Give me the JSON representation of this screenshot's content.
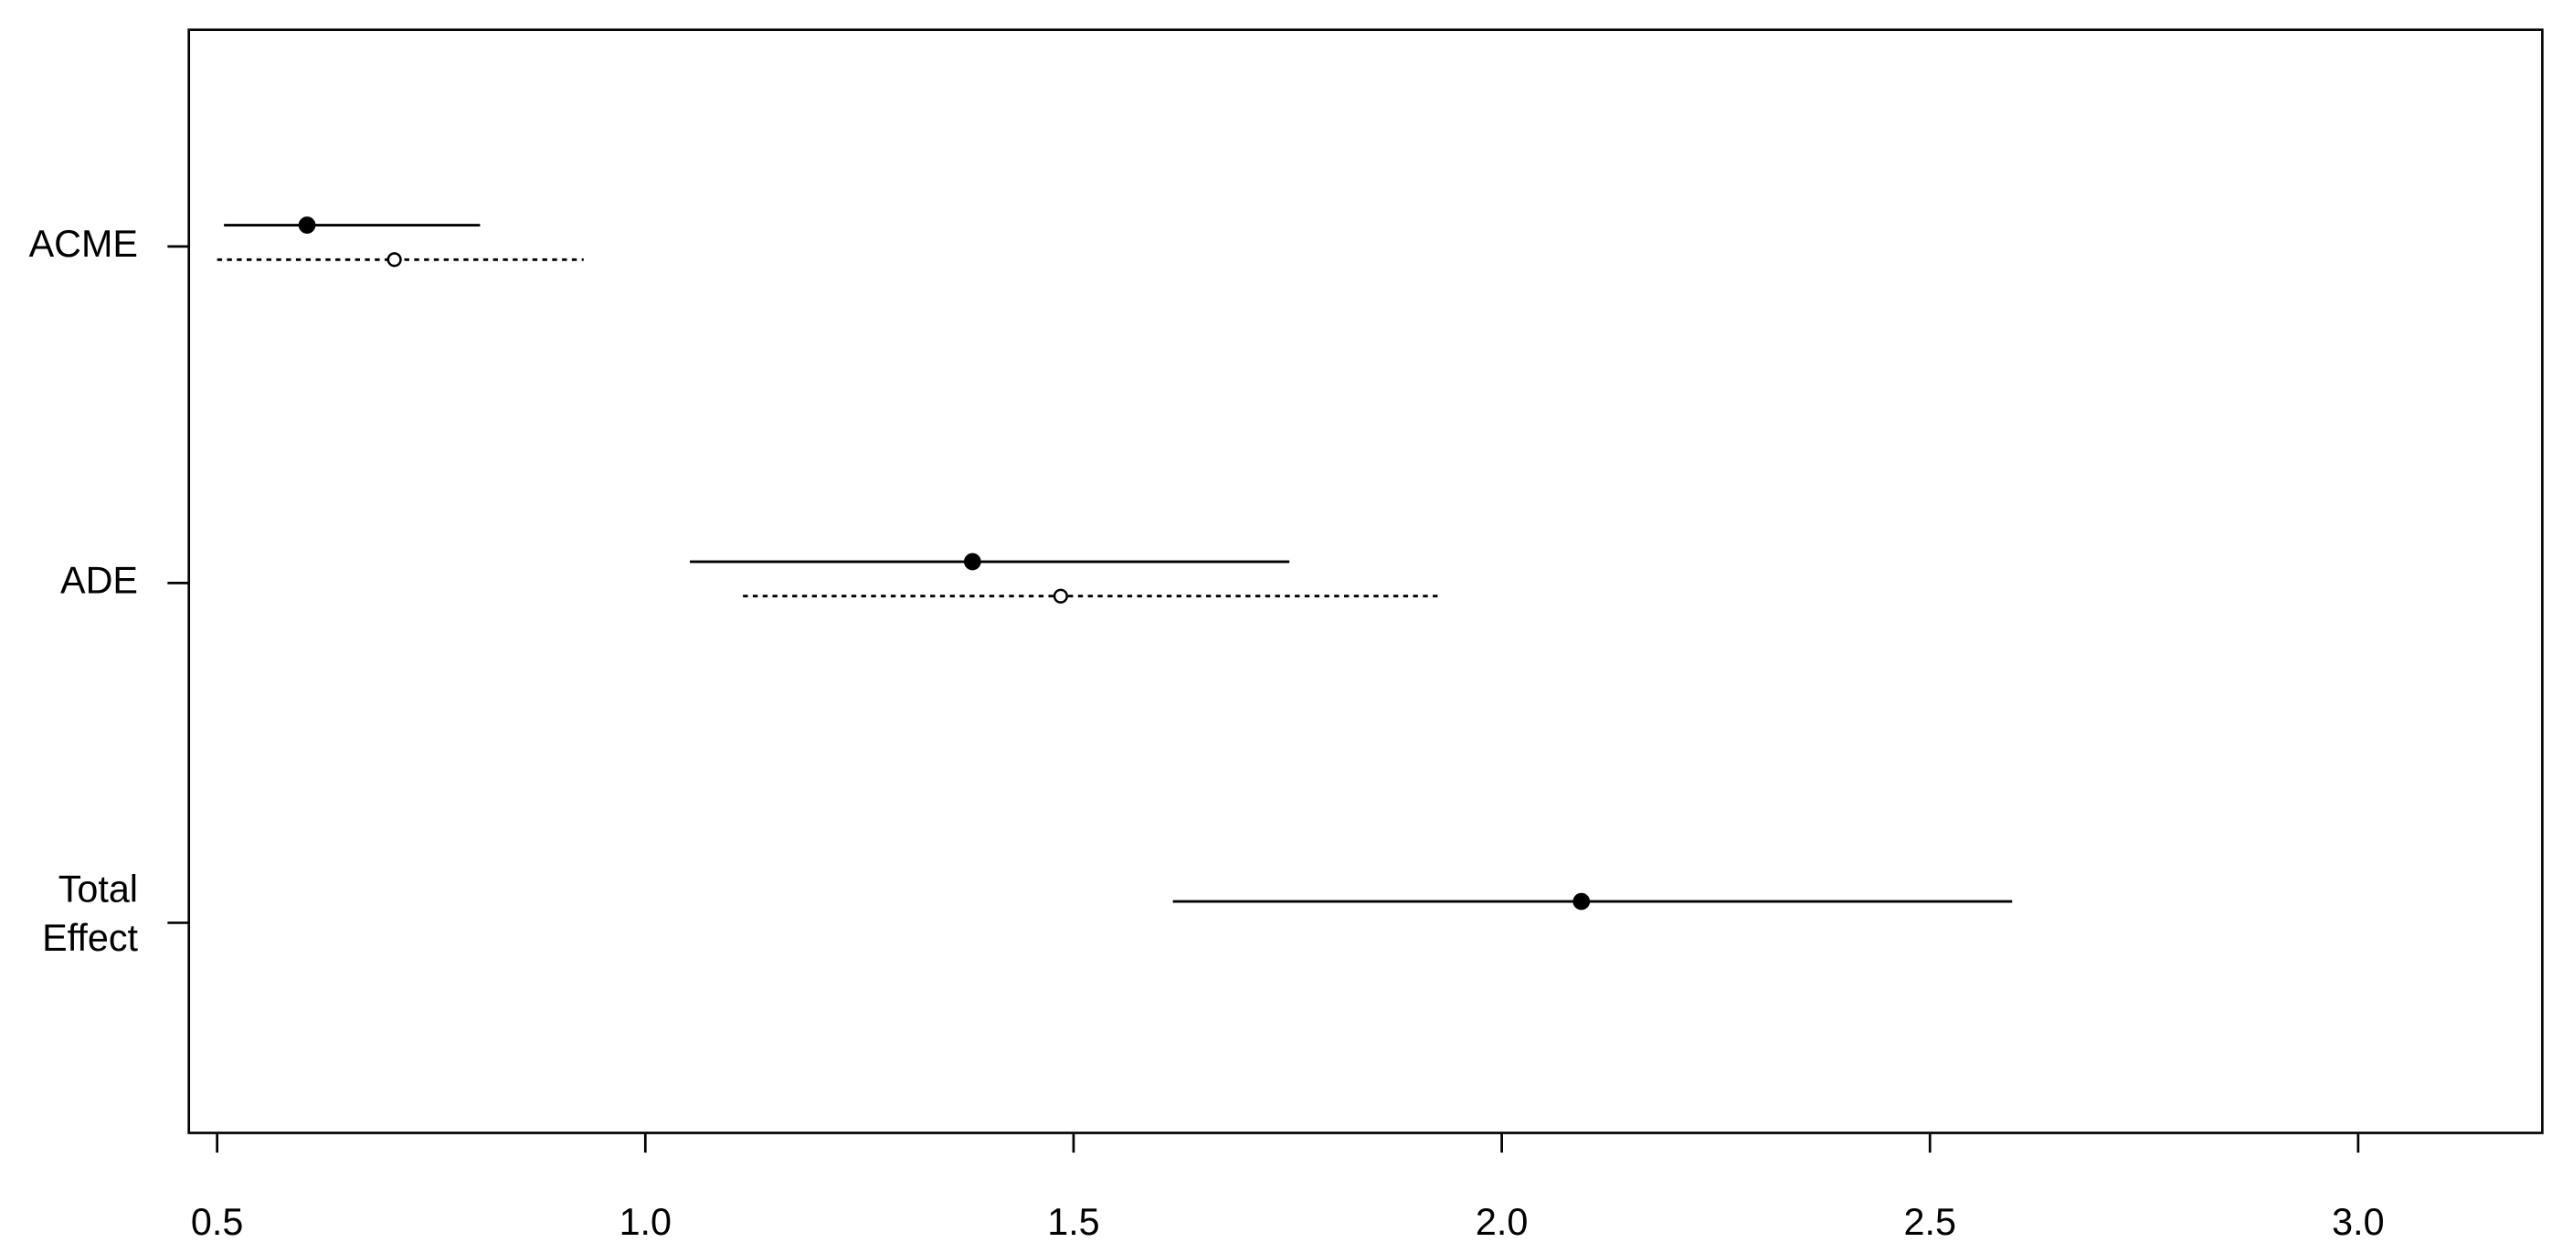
{
  "chart_data": {
    "type": "interval",
    "categories": [
      "ACME",
      "ADE",
      "Total Effect"
    ],
    "series": [
      {
        "color": "#000000",
        "marker": "filled",
        "line": "solid",
        "values": [
          0.605,
          1.382,
          2.093
        ],
        "lower": [
          0.508,
          1.052,
          1.616
        ],
        "upper": [
          0.807,
          1.752,
          2.596
        ]
      },
      {
        "color": "#000000",
        "marker": "open",
        "line": "dotted",
        "values": [
          0.707,
          1.485,
          null
        ],
        "lower": [
          0.5,
          1.114,
          null
        ],
        "upper": [
          0.928,
          1.93,
          null
        ]
      }
    ],
    "xlim": [
      0.467,
      3.215
    ],
    "xticks": [
      {
        "value": 0.5,
        "label": "0.5"
      },
      {
        "value": 1,
        "label": "1.0"
      },
      {
        "value": 1.5,
        "label": "1.5"
      },
      {
        "value": 2,
        "label": "2.0"
      },
      {
        "value": 2.5,
        "label": "2.5"
      },
      {
        "value": 3,
        "label": "3.0"
      }
    ]
  }
}
